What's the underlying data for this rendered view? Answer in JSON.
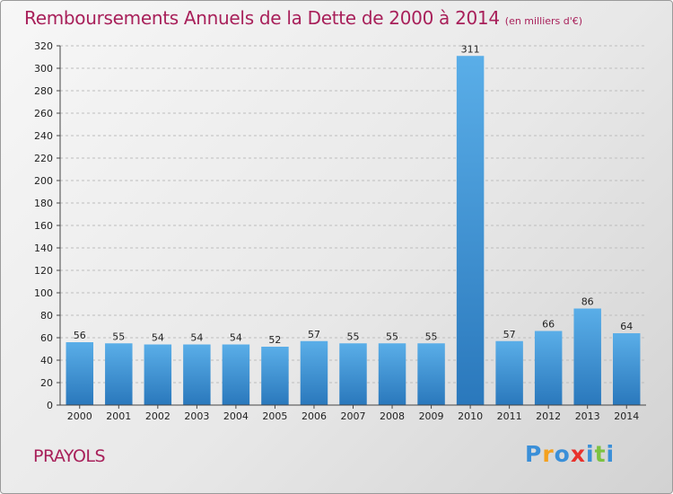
{
  "chart_data": {
    "type": "bar",
    "title": "Remboursements Annuels de la Dette de 2000 à 2014",
    "subtitle": "(en milliers d'€)",
    "categories": [
      "2000",
      "2001",
      "2002",
      "2003",
      "2004",
      "2005",
      "2006",
      "2007",
      "2008",
      "2009",
      "2010",
      "2011",
      "2012",
      "2013",
      "2014"
    ],
    "values": [
      56,
      55,
      54,
      54,
      54,
      52,
      57,
      55,
      55,
      55,
      311,
      57,
      66,
      86,
      64
    ],
    "ylim": [
      0,
      320
    ],
    "yticks": [
      0,
      20,
      40,
      60,
      80,
      100,
      120,
      140,
      160,
      180,
      200,
      220,
      240,
      260,
      280,
      300,
      320
    ],
    "grid": true,
    "legend": "none",
    "bar_color_top": "#5aaee8",
    "bar_color_bottom": "#2a78bc"
  },
  "commune": "PRAYOLS",
  "logo": {
    "letters": [
      "P",
      "r",
      "o",
      "x",
      "i",
      "t",
      "i"
    ],
    "colors": [
      "#3a8fd8",
      "#f4a11f",
      "#3a8fd8",
      "#e8312c",
      "#3a8fd8",
      "#7cc242",
      "#3a8fd8"
    ]
  },
  "colors": {
    "title": "#a8205a",
    "grid": "#bdbdbd"
  }
}
